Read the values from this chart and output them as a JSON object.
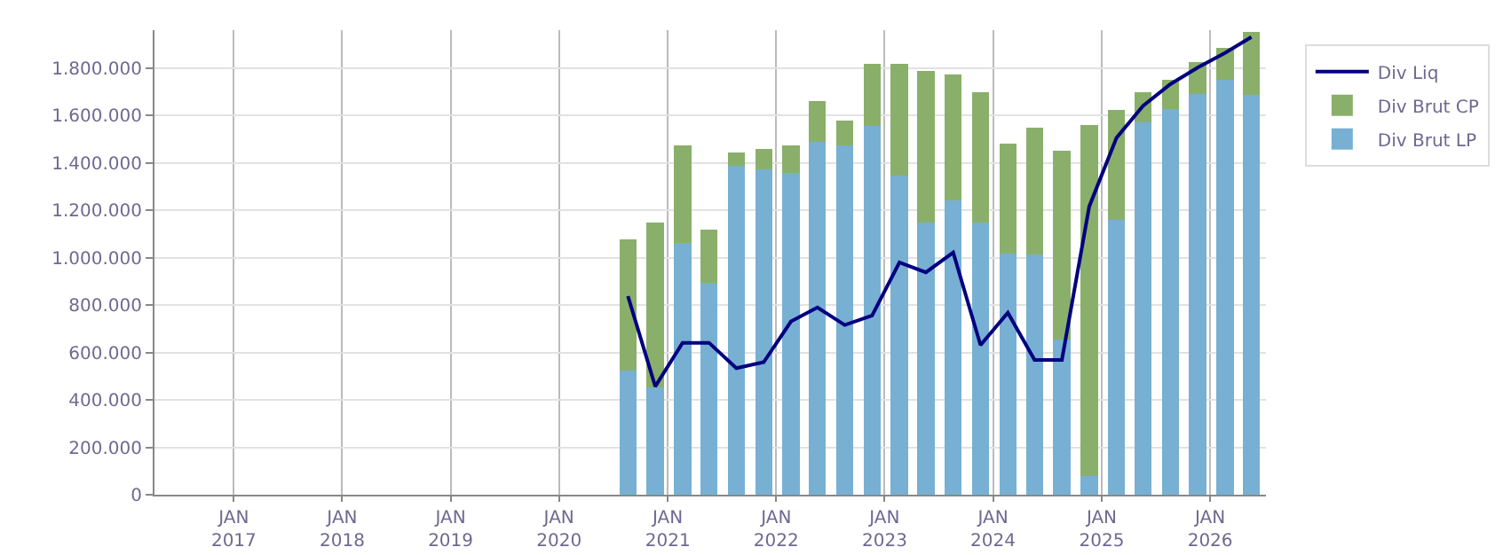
{
  "chart_data": {
    "type": "bar",
    "stacked": true,
    "x": [
      "2020-08-20",
      "2020-11-20",
      "2021-02-20",
      "2021-05-20",
      "2021-08-20",
      "2021-11-20",
      "2022-02-20",
      "2022-05-20",
      "2022-08-20",
      "2022-11-20",
      "2023-02-20",
      "2023-05-20",
      "2023-08-20",
      "2023-11-20",
      "2024-02-20",
      "2024-05-20",
      "2024-08-20",
      "2024-11-20",
      "2025-02-20",
      "2025-05-20",
      "2025-08-20",
      "2025-11-20",
      "2026-02-20",
      "2026-05-20"
    ],
    "series": [
      {
        "name": "Div Brut LP",
        "color": "#77b0d3",
        "values": [
          524000,
          452000,
          1064000,
          893000,
          1386000,
          1371000,
          1356000,
          1490000,
          1475000,
          1557000,
          1348000,
          1147000,
          1241000,
          1147000,
          1017000,
          1012000,
          654000,
          78000,
          1161000,
          1571000,
          1626000,
          1692000,
          1752000,
          1686000
        ]
      },
      {
        "name": "Div Brut CP",
        "color": "#8aaf6a",
        "values": [
          555000,
          695000,
          411000,
          224000,
          59000,
          89000,
          119000,
          172000,
          105000,
          262000,
          471000,
          642000,
          533000,
          552000,
          466000,
          538000,
          799000,
          1480000,
          464000,
          128000,
          126000,
          134000,
          134000,
          267000
        ]
      },
      {
        "name": "Div Liq",
        "type": "line",
        "color": "#000080",
        "values": [
          838000,
          457000,
          641000,
          641000,
          534000,
          559000,
          731000,
          790000,
          716000,
          756000,
          980000,
          938000,
          1022000,
          631000,
          768000,
          569000,
          569000,
          1216000,
          1506000,
          1640000,
          1732000,
          1802000,
          1864000,
          1931000
        ]
      }
    ],
    "xlim": [
      "2016-04-09",
      "2026-07-08"
    ],
    "xticks": [
      {
        "value": "2017-01-01",
        "label": "JAN\n2017"
      },
      {
        "value": "2018-01-01",
        "label": "JAN\n2018"
      },
      {
        "value": "2019-01-01",
        "label": "JAN\n2019"
      },
      {
        "value": "2020-01-01",
        "label": "JAN\n2020"
      },
      {
        "value": "2021-01-01",
        "label": "JAN\n2021"
      },
      {
        "value": "2022-01-01",
        "label": "JAN\n2022"
      },
      {
        "value": "2023-01-01",
        "label": "JAN\n2023"
      },
      {
        "value": "2024-01-01",
        "label": "JAN\n2024"
      },
      {
        "value": "2025-01-01",
        "label": "JAN\n2025"
      },
      {
        "value": "2026-01-01",
        "label": "JAN\n2026"
      }
    ],
    "ylim": [
      0,
      1960000
    ],
    "yticks": [
      0,
      {
        "value": 200000,
        "label": "200.000"
      },
      {
        "value": 400000,
        "label": "400.000"
      },
      {
        "value": 600000,
        "label": "600.000"
      },
      {
        "value": 800000,
        "label": "800.000"
      },
      {
        "value": 1000000,
        "label": "1.000.000"
      },
      {
        "value": 1200000,
        "label": "1.200.000"
      },
      {
        "value": 1400000,
        "label": "1.400.000"
      },
      {
        "value": 1600000,
        "label": "1.600.000"
      },
      {
        "value": 1800000,
        "label": "1.800.000"
      }
    ],
    "grid": true,
    "legend": "top right",
    "marker": "none",
    "line_style": "solid"
  }
}
